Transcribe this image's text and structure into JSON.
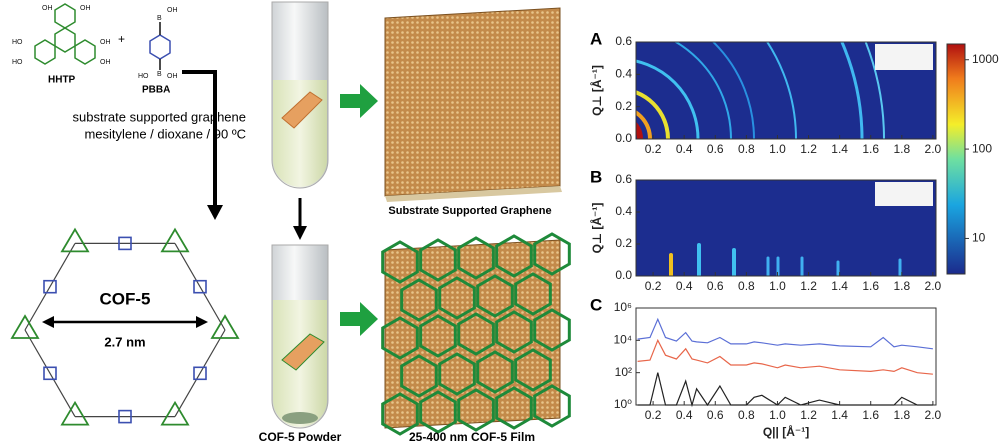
{
  "diagram": {
    "hhtp_label": "HHTP",
    "pbba_label": "PBBA",
    "plus": "+",
    "hhtp_atoms": [
      "OH",
      "OH",
      "HO",
      "HO",
      "OH",
      "OH"
    ],
    "pbba_atoms": [
      "B",
      "OH",
      "HO",
      "B",
      "OH"
    ],
    "conditions": [
      "substrate supported graphene",
      "mesitylene / dioxane / 90 ºC"
    ],
    "cof_label": "COF-5",
    "pore_size": "2.7 nm",
    "top_film_caption": "Substrate Supported Graphene",
    "powder_caption": "COF-5 Powder",
    "bottom_film_caption": "25-400 nm COF-5 Film"
  },
  "chart_data": [
    {
      "type": "heatmap",
      "panel": "A",
      "ylabel": "Q⊥ [Å⁻¹]",
      "xlim": [
        0.09,
        2.02
      ],
      "xticks": [
        0.2,
        0.4,
        0.6,
        0.8,
        {
          "value": 1,
          "label": "1.0"
        },
        1.2,
        1.4,
        1.6,
        1.8,
        {
          "value": 2,
          "label": "2.0"
        }
      ],
      "ylim": [
        0,
        0.6
      ],
      "yticks": [
        {
          "value": 0,
          "label": "0.0"
        },
        0.2,
        0.4,
        0.6
      ],
      "colorbar": {
        "log": true,
        "lim": [
          4,
          1500
        ],
        "ticks": [
          10,
          100,
          1000
        ]
      }
    },
    {
      "type": "heatmap",
      "panel": "B",
      "ylabel": "Q⊥ [Å⁻¹]",
      "xlim": [
        0.09,
        2.02
      ],
      "xticks": [
        0.2,
        0.4,
        0.6,
        0.8,
        {
          "value": 1,
          "label": "1.0"
        },
        1.2,
        1.4,
        1.6,
        1.8,
        {
          "value": 2,
          "label": "2.0"
        }
      ],
      "ylim": [
        0,
        0.6
      ],
      "yticks": [
        {
          "value": 0,
          "label": "0.0"
        },
        0.2,
        0.4,
        0.6
      ]
    },
    {
      "type": "line",
      "panel": "C",
      "xlabel": "Q|| [Å⁻¹]",
      "log_y": true,
      "xlim": [
        0.09,
        2.02
      ],
      "xticks": [
        0.2,
        0.4,
        0.6,
        0.8,
        {
          "value": 1,
          "label": "1.0"
        },
        1.2,
        1.4,
        1.6,
        1.8,
        {
          "value": 2,
          "label": "2.0"
        }
      ],
      "ylim": [
        1,
        1000000
      ],
      "yticks": [
        {
          "value": 1,
          "label": "10⁰"
        },
        {
          "value": 100,
          "label": "10²"
        },
        {
          "value": 10000,
          "label": "10⁴"
        },
        {
          "value": 1000000,
          "label": "10⁶"
        }
      ],
      "x": [
        0.1,
        0.18,
        0.23,
        0.28,
        0.35,
        0.41,
        0.45,
        0.48,
        0.55,
        0.63,
        0.7,
        0.8,
        0.85,
        0.9,
        1.0,
        1.05,
        1.15,
        1.27,
        1.4,
        1.6,
        1.68,
        1.75,
        1.8,
        1.9,
        2.0
      ],
      "series": [
        {
          "color": "#5b6fd6",
          "values": [
            12000,
            15000,
            200000,
            15000,
            9000,
            30000,
            9000,
            8000,
            7000,
            15000,
            6000,
            6000,
            8000,
            7000,
            5000,
            6000,
            5000,
            6000,
            4500,
            4000,
            15000,
            4000,
            5000,
            4000,
            3000
          ]
        },
        {
          "color": "#e8664a",
          "values": [
            500,
            600,
            10000,
            1200,
            700,
            3000,
            700,
            600,
            400,
            1000,
            300,
            300,
            400,
            350,
            200,
            300,
            200,
            250,
            150,
            120,
            150,
            120,
            200,
            100,
            80
          ]
        },
        {
          "color": "#222222",
          "values": [
            1,
            1,
            100,
            1,
            1,
            30,
            1,
            10,
            1,
            15,
            1,
            1,
            3,
            4,
            1,
            3,
            1,
            2,
            1,
            1,
            1,
            1,
            3,
            1,
            1
          ]
        }
      ]
    }
  ]
}
